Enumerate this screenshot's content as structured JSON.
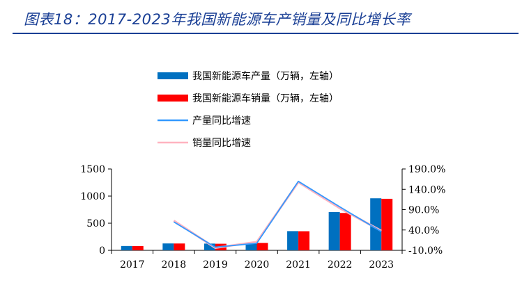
{
  "title": "图表18：2017-2023年我国新能源车产销量及同比增长率",
  "chart_data": {
    "type": "bar+line",
    "categories": [
      "2017",
      "2018",
      "2019",
      "2020",
      "2021",
      "2022",
      "2023"
    ],
    "bar_series": [
      {
        "name": "我国新能源车产量（万辆，左轴）",
        "axis": "left",
        "color": "#0070c0",
        "values": [
          79,
          127,
          124,
          136,
          354,
          706,
          959
        ]
      },
      {
        "name": "我国新能源车销量（万辆，左轴）",
        "axis": "right_bar",
        "color": "#ff0000",
        "values": [
          77,
          126,
          121,
          137,
          352,
          689,
          950
        ]
      }
    ],
    "line_series": [
      {
        "name": "产量同比增速",
        "axis": "right",
        "color": "#3399ff",
        "values": [
          null,
          60.0,
          -2.3,
          7.5,
          159.5,
          96.9,
          35.8
        ]
      },
      {
        "name": "销量同比增速",
        "axis": "right",
        "color": "#ffb3c0",
        "values": [
          null,
          63.0,
          -4.0,
          10.9,
          157.5,
          93.4,
          37.9
        ]
      }
    ],
    "y_left": {
      "min": 0,
      "max": 1500,
      "ticks": [
        "0",
        "500",
        "1000",
        "1500"
      ]
    },
    "y_right": {
      "min": -10,
      "max": 190,
      "ticks": [
        "-10.0%",
        "40.0%",
        "90.0%",
        "140.0%",
        "190.0%"
      ]
    },
    "legend_placement": "top-center",
    "grid": false
  }
}
